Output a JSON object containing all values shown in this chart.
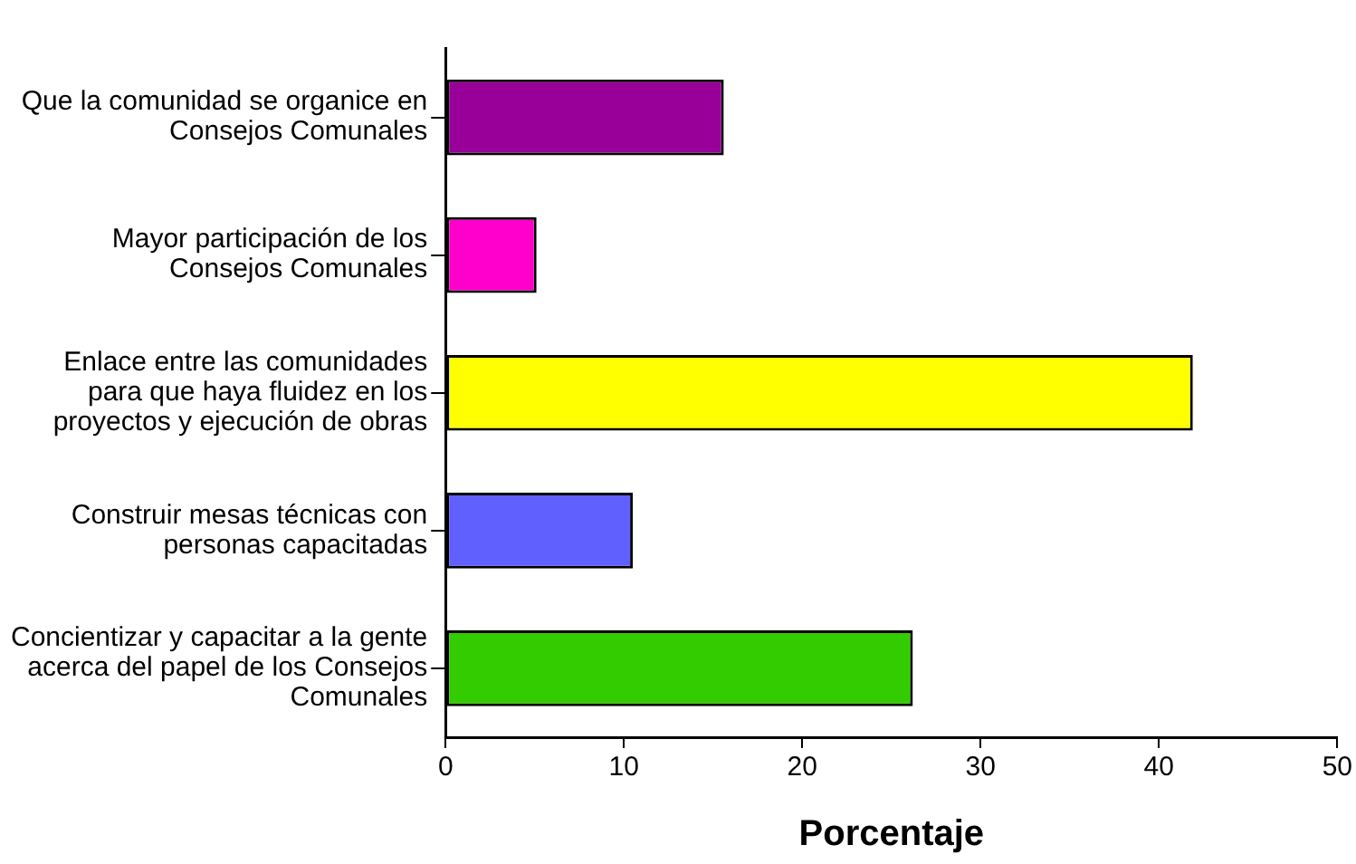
{
  "chart_data": {
    "type": "bar",
    "orientation": "horizontal",
    "xlabel": "Porcentaje",
    "categories": [
      "Que la comunidad se organice en Consejos Comunales",
      "Mayor participación de los Consejos Comunales",
      "Enlace entre las comunidades para que haya fluidez en los proyectos y ejecución de obras",
      "Construir mesas técnicas con personas capacitadas",
      "Concientizar y capacitar a la gente acerca del papel de los Consejos Comunales"
    ],
    "values": [
      15.6,
      5.1,
      41.9,
      10.5,
      26.2
    ],
    "colors": [
      "#990099",
      "#ff00cc",
      "#ffff00",
      "#6060ff",
      "#33cc00"
    ],
    "xlim": [
      0,
      50
    ],
    "xticks": [
      0,
      10,
      20,
      30,
      40,
      50
    ],
    "grid": false,
    "legend": false
  }
}
